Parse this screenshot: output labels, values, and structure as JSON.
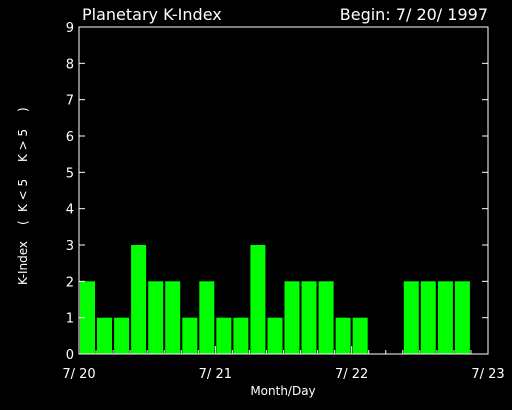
{
  "chart_data": {
    "type": "bar",
    "title": "Planetary K-Index",
    "begin_label": "Begin: 7/ 20/ 1997",
    "ylabel": {
      "main": "K-Index",
      "open": "(",
      "low": "K < 5",
      "high": "K > 5",
      "close": ")"
    },
    "xlabel": "Month/Day",
    "ylim": [
      0,
      9
    ],
    "yticks": [
      "0",
      "1",
      "2",
      "3",
      "4",
      "5",
      "6",
      "7",
      "8",
      "9"
    ],
    "xticks": [
      {
        "label": "7/ 20",
        "day": 0
      },
      {
        "label": "7/ 21",
        "day": 1
      },
      {
        "label": "7/ 22",
        "day": 2
      },
      {
        "label": "7/ 23",
        "day": 3
      }
    ],
    "bin_hours": 3,
    "values": [
      2,
      1,
      1,
      3,
      2,
      2,
      1,
      2,
      1,
      1,
      3,
      1,
      2,
      2,
      2,
      1,
      1,
      0,
      0,
      2,
      2,
      2,
      2,
      0
    ],
    "colors": {
      "background": "#000000",
      "axis": "#ffffff",
      "bar_low": "#00ff00",
      "bar_high": "#ff0000",
      "label_low": "#00ff00",
      "label_high": "#ff0000"
    },
    "grid": false
  }
}
